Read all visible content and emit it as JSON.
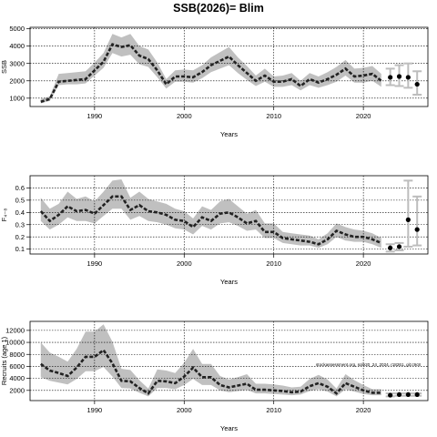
{
  "title": "SSB(2026)= Blim",
  "annotation": "stockassessment.org, sole20_24_2024, r18261, git:c9c8",
  "chart_data": [
    {
      "type": "line",
      "ylabel": "SSB",
      "xlabel": "Years",
      "xlim": [
        1982.8,
        2027.2
      ],
      "ylim": [
        520,
        5080
      ],
      "yticks": [
        1000,
        2000,
        3000,
        4000,
        5000
      ],
      "xticks": [
        1990,
        2000,
        2010,
        2020
      ],
      "grid": true,
      "x": [
        1984,
        1985,
        1986,
        1987,
        1988,
        1989,
        1990,
        1991,
        1992,
        1993,
        1994,
        1995,
        1996,
        1997,
        1998,
        1999,
        2000,
        2001,
        2002,
        2003,
        2004,
        2005,
        2006,
        2007,
        2008,
        2009,
        2010,
        2011,
        2012,
        2013,
        2014,
        2015,
        2016,
        2017,
        2018,
        2019,
        2020,
        2021,
        2022
      ],
      "y": [
        800,
        950,
        1950,
        2000,
        2050,
        2100,
        2600,
        3100,
        4100,
        3950,
        4050,
        3450,
        3250,
        2600,
        1800,
        2250,
        2250,
        2200,
        2500,
        2900,
        3150,
        3400,
        2900,
        2450,
        2000,
        2300,
        1950,
        1950,
        2100,
        1700,
        2100,
        1900,
        2100,
        2350,
        2700,
        2250,
        2300,
        2400,
        2000
      ],
      "lower": [
        700,
        850,
        1750,
        1800,
        1800,
        1850,
        2300,
        2750,
        3600,
        3400,
        3500,
        2950,
        2800,
        2200,
        1550,
        1950,
        1950,
        1900,
        2150,
        2500,
        2700,
        2900,
        2450,
        2050,
        1700,
        1950,
        1650,
        1650,
        1750,
        1450,
        1750,
        1600,
        1750,
        1950,
        2300,
        1900,
        1900,
        2000,
        1650
      ],
      "upper": [
        950,
        1100,
        2400,
        2450,
        2500,
        2550,
        3050,
        3600,
        4700,
        4500,
        4700,
        4000,
        3800,
        3050,
        2100,
        2600,
        2650,
        2600,
        2900,
        3350,
        3650,
        3950,
        3350,
        2850,
        2300,
        2700,
        2250,
        2300,
        2450,
        2000,
        2450,
        2250,
        2500,
        2800,
        3200,
        2700,
        2750,
        2850,
        2400
      ],
      "forecast": {
        "x": [
          2023,
          2024,
          2025,
          2026
        ],
        "y": [
          2200,
          2250,
          2200,
          1800
        ],
        "lower": [
          1750,
          1700,
          1600,
          1200
        ],
        "upper": [
          2700,
          2900,
          3000,
          2550
        ]
      }
    },
    {
      "type": "line",
      "ylabel": "F₄₋₈",
      "xlabel": "Years",
      "xlim": [
        1982.8,
        2027.2
      ],
      "ylim": [
        0.06,
        0.7
      ],
      "yticks": [
        0.1,
        0.2,
        0.3,
        0.4,
        0.5,
        0.6
      ],
      "xticks": [
        1990,
        2000,
        2010,
        2020
      ],
      "grid": true,
      "x": [
        1984,
        1985,
        1986,
        1987,
        1988,
        1989,
        1990,
        1991,
        1992,
        1993,
        1994,
        1995,
        1996,
        1997,
        1998,
        1999,
        2000,
        2001,
        2002,
        2003,
        2004,
        2005,
        2006,
        2007,
        2008,
        2009,
        2010,
        2011,
        2012,
        2013,
        2014,
        2015,
        2016,
        2017,
        2018,
        2019,
        2020,
        2021,
        2022
      ],
      "y": [
        0.41,
        0.33,
        0.38,
        0.45,
        0.41,
        0.42,
        0.39,
        0.46,
        0.53,
        0.53,
        0.42,
        0.46,
        0.41,
        0.4,
        0.38,
        0.34,
        0.33,
        0.28,
        0.36,
        0.33,
        0.39,
        0.4,
        0.36,
        0.31,
        0.33,
        0.24,
        0.24,
        0.19,
        0.18,
        0.17,
        0.16,
        0.14,
        0.18,
        0.25,
        0.22,
        0.2,
        0.2,
        0.18,
        0.15
      ],
      "lower": [
        0.33,
        0.26,
        0.3,
        0.36,
        0.33,
        0.33,
        0.31,
        0.37,
        0.43,
        0.43,
        0.34,
        0.37,
        0.33,
        0.32,
        0.3,
        0.27,
        0.26,
        0.22,
        0.29,
        0.26,
        0.31,
        0.32,
        0.29,
        0.25,
        0.26,
        0.19,
        0.19,
        0.15,
        0.14,
        0.13,
        0.13,
        0.11,
        0.14,
        0.2,
        0.17,
        0.16,
        0.16,
        0.14,
        0.11
      ],
      "upper": [
        0.52,
        0.43,
        0.47,
        0.57,
        0.51,
        0.53,
        0.49,
        0.57,
        0.66,
        0.67,
        0.52,
        0.57,
        0.51,
        0.49,
        0.47,
        0.43,
        0.41,
        0.35,
        0.45,
        0.42,
        0.49,
        0.51,
        0.45,
        0.39,
        0.42,
        0.31,
        0.31,
        0.24,
        0.23,
        0.22,
        0.21,
        0.18,
        0.23,
        0.31,
        0.28,
        0.26,
        0.25,
        0.23,
        0.19
      ],
      "forecast": {
        "x": [
          2023,
          2024,
          2025,
          2026
        ],
        "y": [
          0.11,
          0.12,
          0.34,
          0.26
        ],
        "lower": [
          0.08,
          0.09,
          0.12,
          0.13
        ],
        "upper": [
          0.14,
          0.15,
          0.66,
          0.53
        ]
      }
    },
    {
      "type": "line",
      "ylabel": "Recruits (age 1)",
      "xlabel": "Years",
      "xlim": [
        1982.8,
        2027.2
      ],
      "ylim": [
        300,
        13500
      ],
      "yticks": [
        2000,
        4000,
        6000,
        8000,
        10000,
        12000
      ],
      "xticks": [
        1990,
        2000,
        2010,
        2020
      ],
      "grid": true,
      "x": [
        1984,
        1985,
        1986,
        1987,
        1988,
        1989,
        1990,
        1991,
        1992,
        1993,
        1994,
        1995,
        1996,
        1997,
        1998,
        1999,
        2000,
        2001,
        2002,
        2003,
        2004,
        2005,
        2006,
        2007,
        2008,
        2009,
        2010,
        2011,
        2012,
        2013,
        2014,
        2015,
        2016,
        2017,
        2018,
        2019,
        2020,
        2021,
        2022
      ],
      "y": [
        6400,
        5300,
        4900,
        4400,
        5800,
        7600,
        7600,
        8700,
        6500,
        3600,
        3500,
        2400,
        1500,
        3600,
        3500,
        3200,
        4300,
        5800,
        4200,
        4200,
        2900,
        2500,
        2800,
        3100,
        2100,
        2100,
        2000,
        1900,
        1700,
        1800,
        2700,
        3200,
        2600,
        1500,
        3200,
        2600,
        2000,
        1600,
        1600
      ],
      "lower": [
        4200,
        3600,
        3300,
        3000,
        3900,
        5200,
        5200,
        5900,
        4300,
        2400,
        2300,
        1600,
        1000,
        2400,
        2400,
        2200,
        2900,
        3900,
        2900,
        2900,
        2000,
        1700,
        1900,
        2100,
        1500,
        1500,
        1400,
        1300,
        1200,
        1300,
        1900,
        2200,
        1800,
        1000,
        2200,
        1800,
        1400,
        1200,
        1200
      ],
      "upper": [
        10000,
        8300,
        7600,
        6800,
        8900,
        11800,
        11800,
        13000,
        10100,
        5600,
        5400,
        3700,
        2300,
        5500,
        5300,
        4900,
        6600,
        8900,
        6400,
        6400,
        4400,
        3800,
        4200,
        4700,
        3100,
        3100,
        3000,
        2800,
        2500,
        2600,
        3900,
        4600,
        3800,
        2300,
        4700,
        3700,
        2900,
        2200,
        2200
      ],
      "forecast": {
        "x": [
          2023,
          2024,
          2025,
          2026
        ],
        "y": [
          1200,
          1300,
          1300,
          1300
        ],
        "lower": [
          1000,
          1100,
          1100,
          1100
        ],
        "upper": [
          1500,
          1500,
          1500,
          1500
        ]
      }
    }
  ]
}
